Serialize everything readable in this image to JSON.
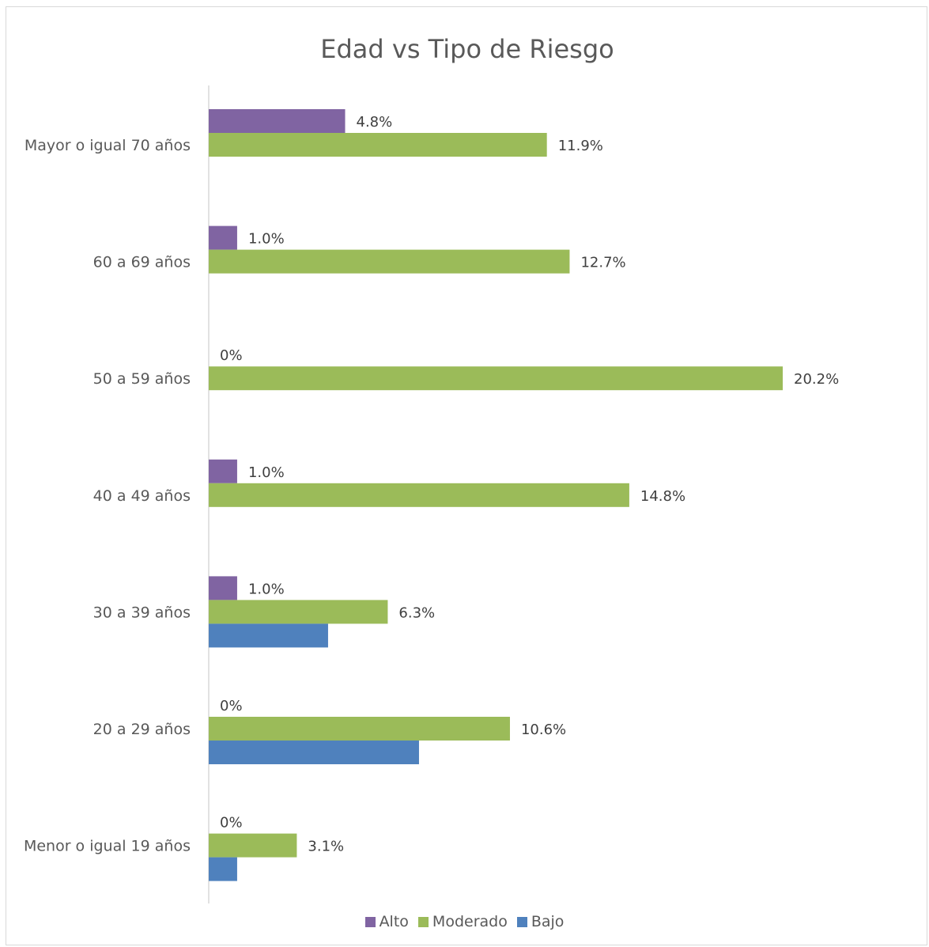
{
  "chart_data": {
    "type": "bar",
    "orientation": "horizontal",
    "title": "Edad vs Tipo de Riesgo",
    "categories": [
      "Mayor o igual 70 años",
      "60 a 69 años",
      "50 a 59 años",
      "40 a 49 años",
      "30 a 39 años",
      "20 a 29 años",
      "Menor o igual 19 años"
    ],
    "series": [
      {
        "name": "Alto",
        "color": "#8064a2",
        "values": [
          4.8,
          1.0,
          0,
          1.0,
          1.0,
          0,
          0
        ],
        "labels": [
          "4.8%",
          "1.0%",
          "0%",
          "1.0%",
          "1.0%",
          "0%",
          "0%"
        ]
      },
      {
        "name": "Moderado",
        "color": "#9bbb59",
        "values": [
          11.9,
          12.7,
          20.2,
          14.8,
          6.3,
          10.6,
          3.1
        ],
        "labels": [
          "11.9%",
          "12.7%",
          "20.2%",
          "14.8%",
          "6.3%",
          "10.6%",
          "3.1%"
        ]
      },
      {
        "name": "Bajo",
        "color": "#4f81bd",
        "values": [
          0,
          0,
          0,
          0,
          4.2,
          7.4,
          1.0
        ],
        "labels": [
          "",
          "",
          "",
          "",
          "",
          "",
          ""
        ]
      }
    ],
    "xlim": [
      0,
      21
    ],
    "legend_position": "bottom",
    "grid": false
  }
}
